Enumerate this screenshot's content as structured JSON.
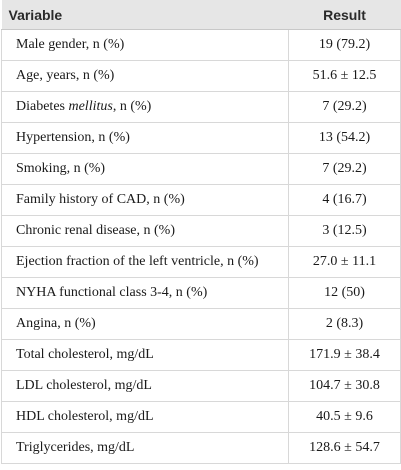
{
  "table": {
    "headers": {
      "variable": "Variable",
      "result": "Result"
    },
    "rows": [
      {
        "variable": "Male gender, n (%)",
        "result": "19 (79.2)"
      },
      {
        "variable": "Age, years, n (%)",
        "result": "51.6 ± 12.5"
      },
      {
        "variable_pre": "Diabetes ",
        "variable_em": "mellitus",
        "variable_post": ", n (%)",
        "result": "7 (29.2)"
      },
      {
        "variable": "Hypertension, n (%)",
        "result": "13 (54.2)"
      },
      {
        "variable": "Smoking, n (%)",
        "result": "7 (29.2)"
      },
      {
        "variable": "Family history of CAD, n (%)",
        "result": "4 (16.7)"
      },
      {
        "variable": "Chronic renal disease, n (%)",
        "result": "3 (12.5)"
      },
      {
        "variable": "Ejection fraction of the left ventricle, n (%)",
        "result": "27.0 ± 11.1"
      },
      {
        "variable": "NYHA functional class 3-4, n (%)",
        "result": "12 (50)"
      },
      {
        "variable": "Angina, n (%)",
        "result": "2 (8.3)"
      },
      {
        "variable": "Total cholesterol, mg/dL",
        "result": "171.9 ± 38.4"
      },
      {
        "variable": "LDL cholesterol, mg/dL",
        "result": "104.7 ± 30.8"
      },
      {
        "variable": "HDL cholesterol, mg/dL",
        "result": "40.5 ± 9.6"
      },
      {
        "variable": "Triglycerides, mg/dL",
        "result": "128.6 ± 54.7"
      }
    ]
  }
}
